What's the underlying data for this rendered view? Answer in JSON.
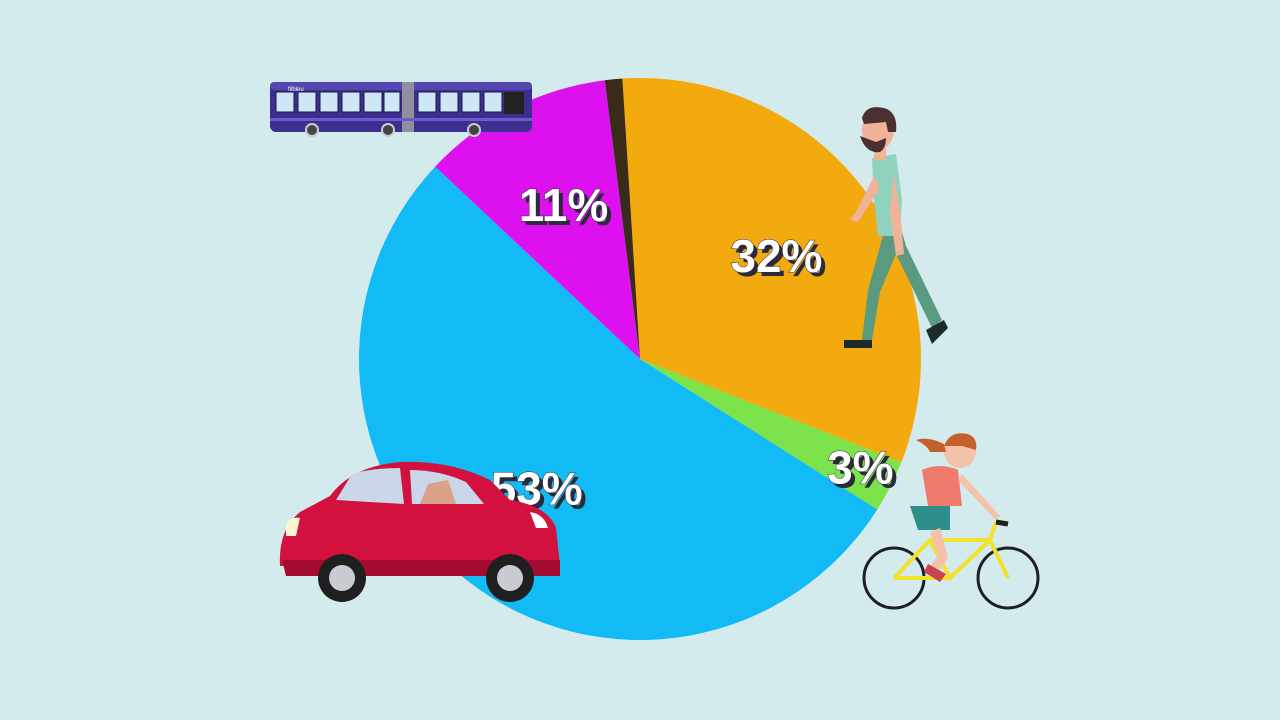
{
  "background": "#d4ebee",
  "chart_data": {
    "type": "pie",
    "slices": [
      {
        "name": "walking",
        "label": "32%",
        "value": 32,
        "color": "#f3aa0e",
        "icon": "pedestrian-icon"
      },
      {
        "name": "cycling",
        "label": "3%",
        "value": 3,
        "color": "#7de34b",
        "icon": "cyclist-icon"
      },
      {
        "name": "car",
        "label": "53%",
        "value": 53,
        "color": "#12bbf5",
        "icon": "car-icon"
      },
      {
        "name": "bus",
        "label": "11%",
        "value": 11,
        "color": "#dd10f0",
        "icon": "bus-icon"
      },
      {
        "name": "other",
        "label": "",
        "value": 1,
        "color": "#3a2a18"
      }
    ]
  },
  "bus": {
    "brand": "filbleu"
  }
}
